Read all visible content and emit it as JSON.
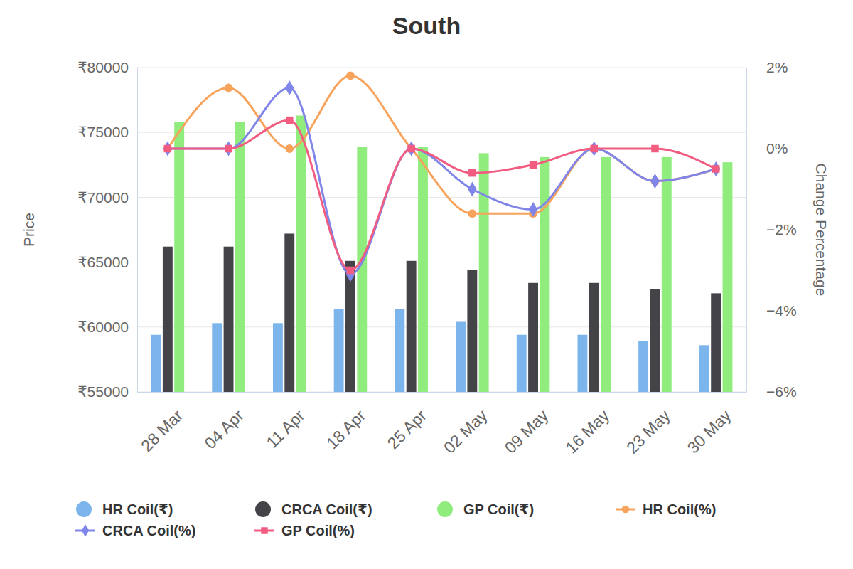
{
  "chart_data": {
    "type": "bar",
    "title": "South",
    "y_label": "Price",
    "y2_label": "Change Percentage",
    "categories": [
      "28 Mar",
      "04 Apr",
      "11 Apr",
      "18 Apr",
      "25 Apr",
      "02 May",
      "09 May",
      "16 May",
      "23 May",
      "30 May"
    ],
    "ylim": [
      55000,
      80000
    ],
    "yticks": [
      {
        "value": 55000,
        "label": "₹55000"
      },
      {
        "value": 60000,
        "label": "₹60000"
      },
      {
        "value": 65000,
        "label": "₹65000"
      },
      {
        "value": 70000,
        "label": "₹70000"
      },
      {
        "value": 75000,
        "label": "₹75000"
      },
      {
        "value": 80000,
        "label": "₹80000"
      }
    ],
    "y2lim": [
      -6,
      2
    ],
    "y2ticks": [
      {
        "value": -6,
        "label": "−6%"
      },
      {
        "value": -4,
        "label": "−4%"
      },
      {
        "value": -2,
        "label": "−2%"
      },
      {
        "value": 0,
        "label": "0%"
      },
      {
        "value": 2,
        "label": "2%"
      }
    ],
    "grid": true,
    "legend": "bottom",
    "series": [
      {
        "name": "HR Coil(₹)",
        "type": "bar",
        "color": "#7cb5ec",
        "values": [
          59400,
          60300,
          60300,
          61400,
          61400,
          60400,
          59400,
          59400,
          58900,
          58600
        ]
      },
      {
        "name": "CRCA Coil(₹)",
        "type": "bar",
        "color": "#434348",
        "values": [
          66200,
          66200,
          67200,
          65100,
          65100,
          64400,
          63400,
          63400,
          62900,
          62600
        ]
      },
      {
        "name": "GP Coil(₹)",
        "type": "bar",
        "color": "#90ed7d",
        "values": [
          75800,
          75800,
          76300,
          73900,
          73900,
          73400,
          73100,
          73100,
          73100,
          72700
        ]
      },
      {
        "name": "HR Coil(%)",
        "type": "line",
        "axis": "y2",
        "color": "#f7a35c",
        "marker": "circle",
        "line_style": "solid",
        "values": [
          0,
          1.5,
          0,
          1.8,
          0,
          -1.6,
          -1.6,
          0,
          -0.8,
          -0.5
        ]
      },
      {
        "name": "CRCA Coil(%)",
        "type": "line",
        "axis": "y2",
        "color": "#8085e9",
        "marker": "diamond",
        "line_style": "solid",
        "values": [
          0,
          0,
          1.5,
          -3.1,
          0,
          -1.0,
          -1.5,
          0,
          -0.8,
          -0.5
        ]
      },
      {
        "name": "GP Coil(%)",
        "type": "line",
        "axis": "y2",
        "color": "#f15c80",
        "marker": "square",
        "line_style": "solid",
        "values": [
          0,
          0,
          0.7,
          -3.0,
          0,
          -0.6,
          -0.4,
          0,
          0,
          -0.5
        ]
      }
    ]
  }
}
